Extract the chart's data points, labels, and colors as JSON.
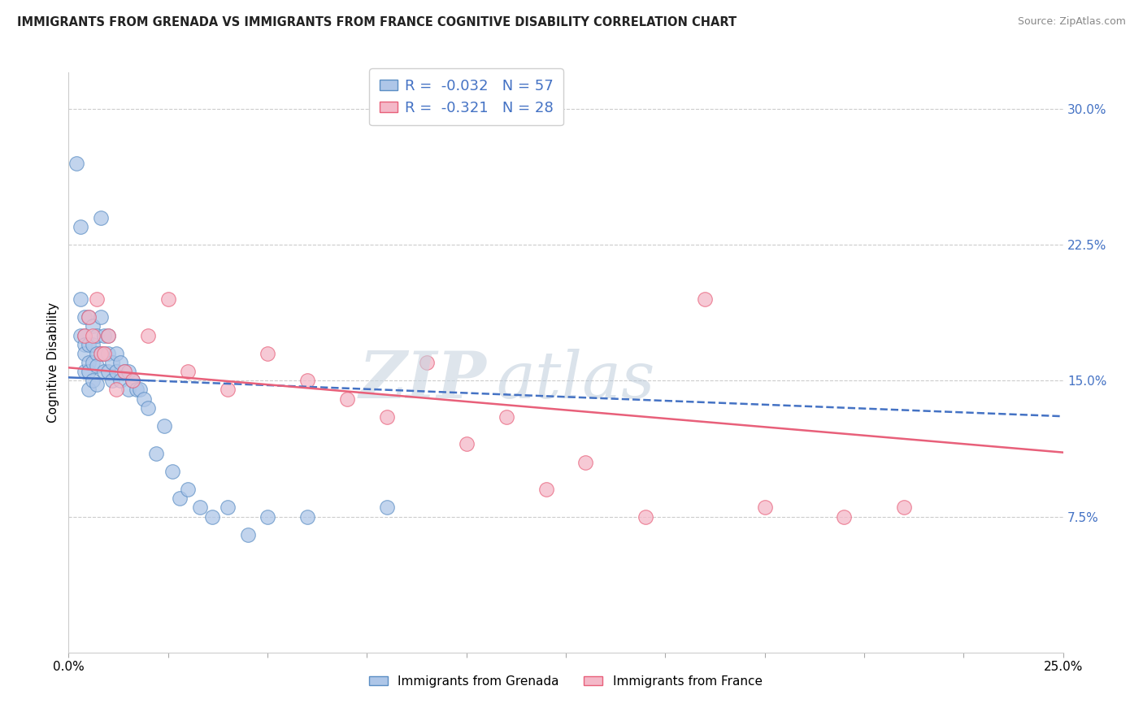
{
  "title": "IMMIGRANTS FROM GRENADA VS IMMIGRANTS FROM FRANCE COGNITIVE DISABILITY CORRELATION CHART",
  "source": "Source: ZipAtlas.com",
  "ylabel": "Cognitive Disability",
  "x_min": 0.0,
  "x_max": 0.25,
  "y_min": 0.0,
  "y_max": 0.32,
  "y_ticks": [
    0.075,
    0.15,
    0.225,
    0.3
  ],
  "y_tick_labels": [
    "7.5%",
    "15.0%",
    "22.5%",
    "30.0%"
  ],
  "x_ticks": [
    0.0,
    0.025,
    0.05,
    0.075,
    0.1,
    0.125,
    0.15,
    0.175,
    0.2,
    0.225,
    0.25
  ],
  "x_tick_labels": [
    "0.0%",
    "",
    "",
    "",
    "",
    "",
    "",
    "",
    "",
    "",
    "25.0%"
  ],
  "legend_labels": [
    "Immigrants from Grenada",
    "Immigrants from France"
  ],
  "grenada_color": "#aec6e8",
  "france_color": "#f4b8c8",
  "grenada_edge_color": "#5b8ec4",
  "france_edge_color": "#e8607a",
  "grenada_line_color": "#4472c4",
  "france_line_color": "#e8607a",
  "grenada_R": -0.032,
  "grenada_N": 57,
  "france_R": -0.321,
  "france_N": 28,
  "grenada_x": [
    0.002,
    0.003,
    0.003,
    0.003,
    0.004,
    0.004,
    0.004,
    0.004,
    0.004,
    0.005,
    0.005,
    0.005,
    0.005,
    0.005,
    0.006,
    0.006,
    0.006,
    0.006,
    0.007,
    0.007,
    0.007,
    0.007,
    0.008,
    0.008,
    0.008,
    0.009,
    0.009,
    0.009,
    0.01,
    0.01,
    0.01,
    0.011,
    0.011,
    0.012,
    0.012,
    0.013,
    0.013,
    0.014,
    0.015,
    0.015,
    0.016,
    0.017,
    0.018,
    0.019,
    0.02,
    0.022,
    0.024,
    0.026,
    0.028,
    0.03,
    0.033,
    0.036,
    0.04,
    0.045,
    0.05,
    0.06,
    0.08
  ],
  "grenada_y": [
    0.27,
    0.235,
    0.195,
    0.175,
    0.185,
    0.175,
    0.17,
    0.165,
    0.155,
    0.185,
    0.17,
    0.16,
    0.155,
    0.145,
    0.18,
    0.17,
    0.16,
    0.15,
    0.175,
    0.165,
    0.158,
    0.148,
    0.24,
    0.185,
    0.165,
    0.175,
    0.165,
    0.155,
    0.175,
    0.165,
    0.155,
    0.16,
    0.15,
    0.165,
    0.155,
    0.16,
    0.15,
    0.155,
    0.155,
    0.145,
    0.15,
    0.145,
    0.145,
    0.14,
    0.135,
    0.11,
    0.125,
    0.1,
    0.085,
    0.09,
    0.08,
    0.075,
    0.08,
    0.065,
    0.075,
    0.075,
    0.08
  ],
  "france_x": [
    0.004,
    0.005,
    0.006,
    0.007,
    0.008,
    0.009,
    0.01,
    0.012,
    0.014,
    0.016,
    0.02,
    0.025,
    0.03,
    0.04,
    0.05,
    0.06,
    0.07,
    0.08,
    0.09,
    0.1,
    0.11,
    0.12,
    0.13,
    0.145,
    0.16,
    0.175,
    0.195,
    0.21
  ],
  "france_y": [
    0.175,
    0.185,
    0.175,
    0.195,
    0.165,
    0.165,
    0.175,
    0.145,
    0.155,
    0.15,
    0.175,
    0.195,
    0.155,
    0.145,
    0.165,
    0.15,
    0.14,
    0.13,
    0.16,
    0.115,
    0.13,
    0.09,
    0.105,
    0.075,
    0.195,
    0.08,
    0.075,
    0.08
  ]
}
